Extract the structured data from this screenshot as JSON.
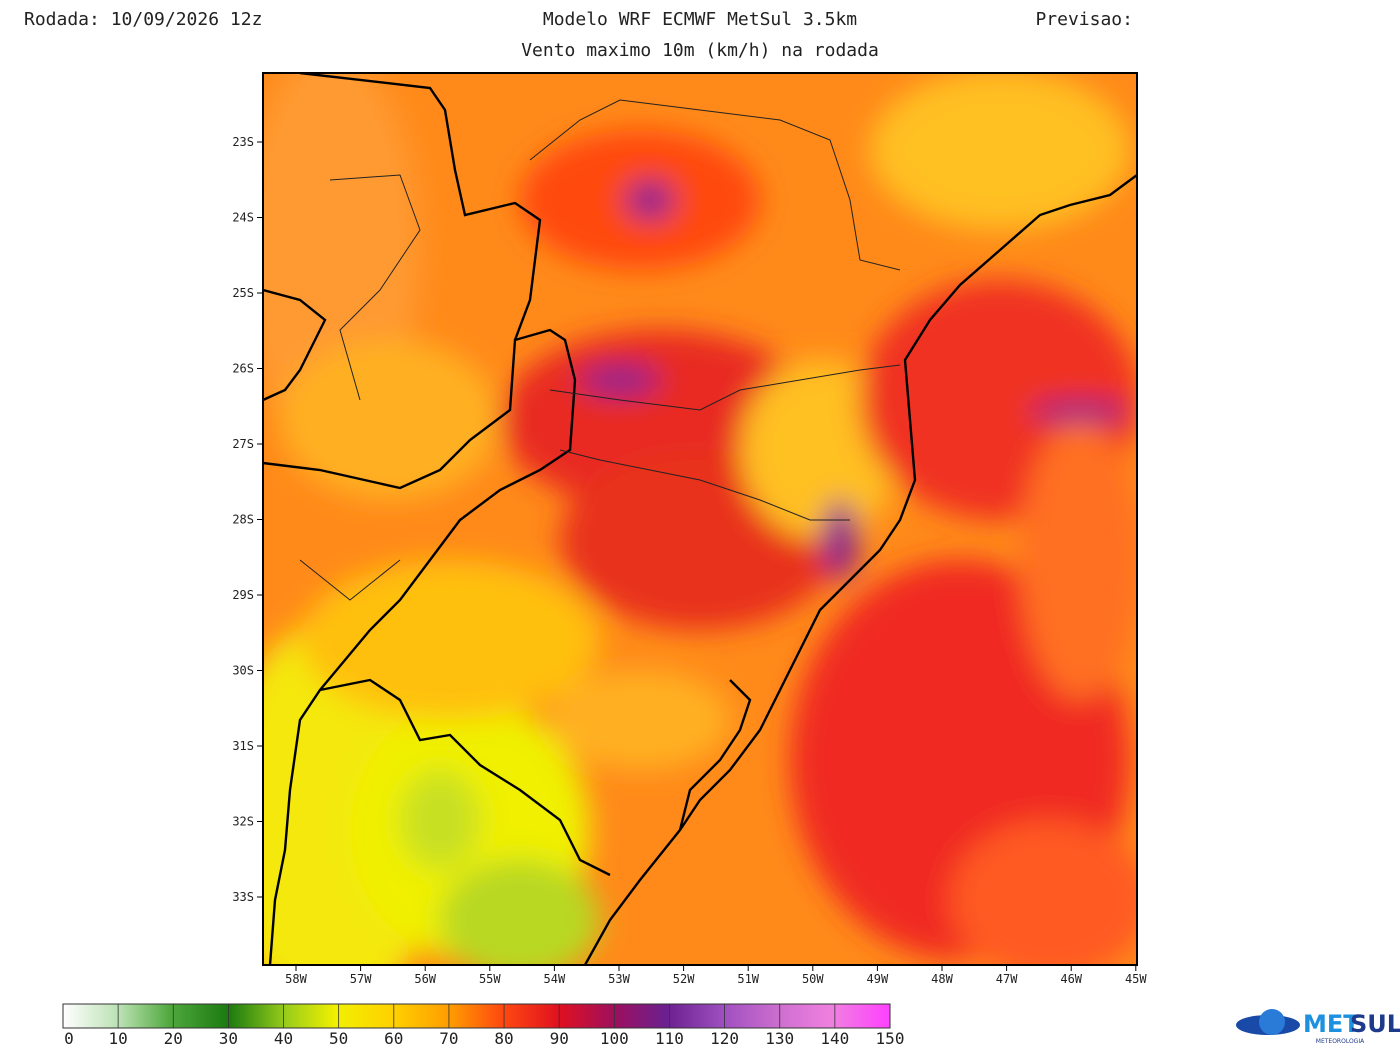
{
  "header": {
    "run": "Rodada: 10/09/2026 12z",
    "model": "Modelo WRF ECMWF MetSul 3.5km",
    "forecast": "Previsao:",
    "subtitle": "Vento maximo 10m (km/h) na rodada"
  },
  "map": {
    "lat_labels": [
      "23S",
      "24S",
      "25S",
      "26S",
      "27S",
      "28S",
      "29S",
      "30S",
      "31S",
      "32S",
      "33S"
    ],
    "lon_labels": [
      "58W",
      "57W",
      "56W",
      "55W",
      "54W",
      "53W",
      "52W",
      "51W",
      "50W",
      "49W",
      "48W",
      "47W",
      "46W",
      "45W"
    ]
  },
  "colorbar": {
    "labels": [
      0,
      10,
      20,
      30,
      40,
      50,
      60,
      70,
      80,
      90,
      100,
      110,
      120,
      130,
      140,
      150
    ]
  },
  "logo": {
    "part_a": "MET",
    "part_b": "SUL",
    "tagline": "METEOROLOGIA"
  }
}
